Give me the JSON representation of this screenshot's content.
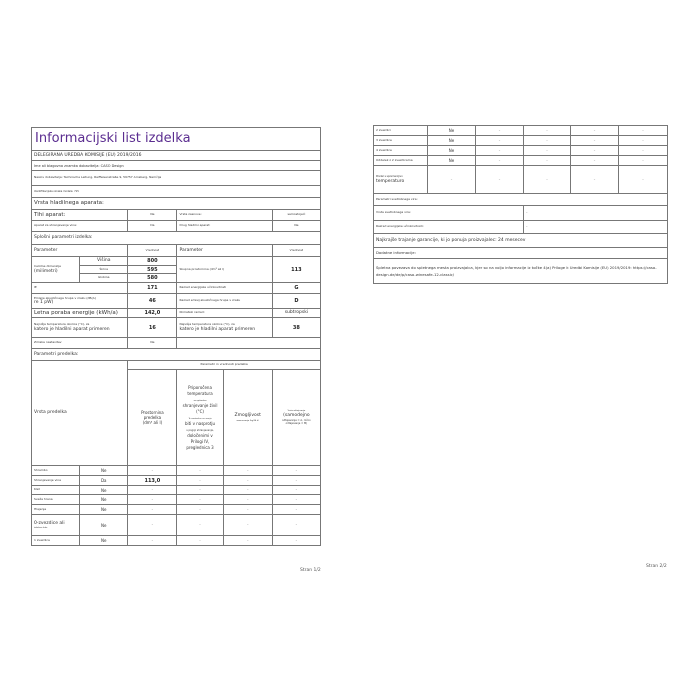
{
  "page1": {
    "title": "Informacijski list izdelka",
    "regulation": "DELEGIRANA UREDBA KOMISIJE (EU) 2019/2016",
    "supplier_name": "Ime ali blagovna znamka dobavitelja: CASO Design",
    "supplier_address": "Naslov dobavitelja: Technische Leitung, Raiffeisenstraße 9, 59757 Arnsberg, Nemčija",
    "model_id": "Identifikacijska oznaka modela: 715",
    "appliance_type": "Vrsta hladilnega aparata:",
    "low_noise_label": "Tihi aparat:",
    "low_noise_value": "Ne",
    "design_type_label": "Vrsta zasnove:",
    "design_type_value": "samostojeći",
    "wine_label": "Aparat za shranjevanje vina:",
    "wine_value": "Da",
    "other_label": "Drug hladilni aparat:",
    "other_value": "Ne",
    "general_params": "Splošni parametri izdelka:",
    "param_header": "Parameter",
    "value_header": "Vrednost",
    "dims_label": "Celotne dimenzije",
    "dims_unit": "(milimetri)",
    "height_label": "Višina",
    "height_value": "800",
    "width_label": "Širina",
    "width_value": "595",
    "depth_label": "Globina",
    "depth_value": "580",
    "volume_label": "Skupna prostornina (dm³ ali l)",
    "volume_value": "113",
    "eei_label": "IE",
    "eei_value": "171",
    "energy_class_label": "Razred energijske učinkovitosti",
    "energy_class_value": "G",
    "noise_label": "Emisije akustičnega hrupa v zraku (dB(A)",
    "noise_unit": "re 1 pW)",
    "noise_value": "46",
    "noise_class_label": "Razred emisij akustičnega hrupa v zraku",
    "noise_class_value": "D",
    "annual_energy_label": "Letna poraba energije (kWh/a)",
    "annual_energy_value": "142,0",
    "climate_label": "Klimatski razred:",
    "climate_value": "subtropski",
    "min_temp_label": "Najnižja temperatura okolice (°C), za",
    "min_temp_label2": "katero je hladilni aparat primeren",
    "min_temp_value": "16",
    "max_temp_label": "Najvišja temperatura okolice (°C), za",
    "max_temp_label2": "katero je hladilni aparat primeren",
    "max_temp_value": "38",
    "winter_label": "Zimska nastavitev",
    "winter_value": "Ne",
    "compartment_params": "Parametri predelka:",
    "compartment_values_header": "Parametri in vrednosti predelka",
    "compartment_type": "Vrsta predelka",
    "col_volume": [
      "Prostornina",
      "predelka",
      "(dm³ ali l)"
    ],
    "col_temp": [
      "Priporočena",
      "temperatura",
      "za optimalno",
      "shranjevanje živil",
      "(°C)",
      "Te nastavitve ne smejo",
      "biti v nasprotju",
      "s pogoji shranjevanja,",
      "določenimi v",
      "Prilogi IV,",
      "preglednica 3"
    ],
    "col_capacity": [
      "Zmogljivost",
      "zamrzovanja (kg/24 h)"
    ],
    "col_defrost": [
      "Vrsta odtajevanja",
      "(samodejno",
      "odtajevanje = A, ročno",
      "odtajevanje = M)"
    ],
    "rows": [
      {
        "name": "Shrambo",
        "present": "Ne",
        "vol": "–",
        "temp": "–",
        "cap": "–",
        "def": "–"
      },
      {
        "name": "Shranjevanje vina",
        "present": "Da",
        "vol": "113,0",
        "temp": "–",
        "cap": "–",
        "def": "–"
      },
      {
        "name": "Klet",
        "present": "Ne",
        "vol": "–",
        "temp": "–",
        "cap": "–",
        "def": "–"
      },
      {
        "name": "Sveža hrana",
        "present": "Ne",
        "vol": "–",
        "temp": "–",
        "cap": "–",
        "def": "–"
      },
      {
        "name": "Hlajenje",
        "present": "Ne",
        "vol": "–",
        "temp": "–",
        "cap": "–",
        "def": "–"
      },
      {
        "name": "0-zvezdice ali",
        "name2": "izdelava ledu",
        "present": "Ne",
        "vol": "–",
        "temp": "–",
        "cap": "–",
        "def": "–"
      },
      {
        "name": "1 zvezdica",
        "present": "Ne",
        "vol": "–",
        "temp": "–",
        "cap": "–",
        "def": "–"
      }
    ],
    "page_number": "Stran 1/2"
  },
  "page2": {
    "rows": [
      {
        "name": "2 zvezdici",
        "present": "Ne",
        "vol": "–",
        "temp": "–",
        "cap": "–",
        "def": "–"
      },
      {
        "name": "3 zvezdice",
        "present": "Ne",
        "vol": "–",
        "temp": "–",
        "cap": "–",
        "def": "–"
      },
      {
        "name": "4 zvezdice",
        "present": "Ne",
        "vol": "–",
        "temp": "–",
        "cap": "–",
        "def": "–"
      },
      {
        "name": "Oddelek z 2 zvezdicama",
        "present": "Ne",
        "vol": "–",
        "temp": "–",
        "cap": "–",
        "def": "–"
      }
    ],
    "variable_label": "Predel s spremenljivo",
    "variable_label2": "temperaturo",
    "variable_vals": [
      "–",
      "–",
      "–",
      "–",
      "–"
    ],
    "light_params": "Parametri svetlobnega vira:",
    "light_type_label": "Vrsta svetlobnega vira:",
    "light_type_value": "–",
    "light_class_label": "Razred energijske učinkovitosti:",
    "light_class_value": "–",
    "warranty": "Najkrajše trajanje garancije, ki jo ponuja proizvajalec: 24 mesecev",
    "additional": "Dodatne informacije:",
    "weblink": "Spletna povezava do spletnega mesta proizvajalca, kjer so na voljo informacije iz točke 4(a) Priloge k Uredbi Komisije (EU) 2019/2019: https://caso-design.de/de/p/caso-winesafe-12-classic/",
    "page_number": "Stran 2/2"
  },
  "colors": {
    "title": "#5b2d90",
    "border": "#777777"
  }
}
